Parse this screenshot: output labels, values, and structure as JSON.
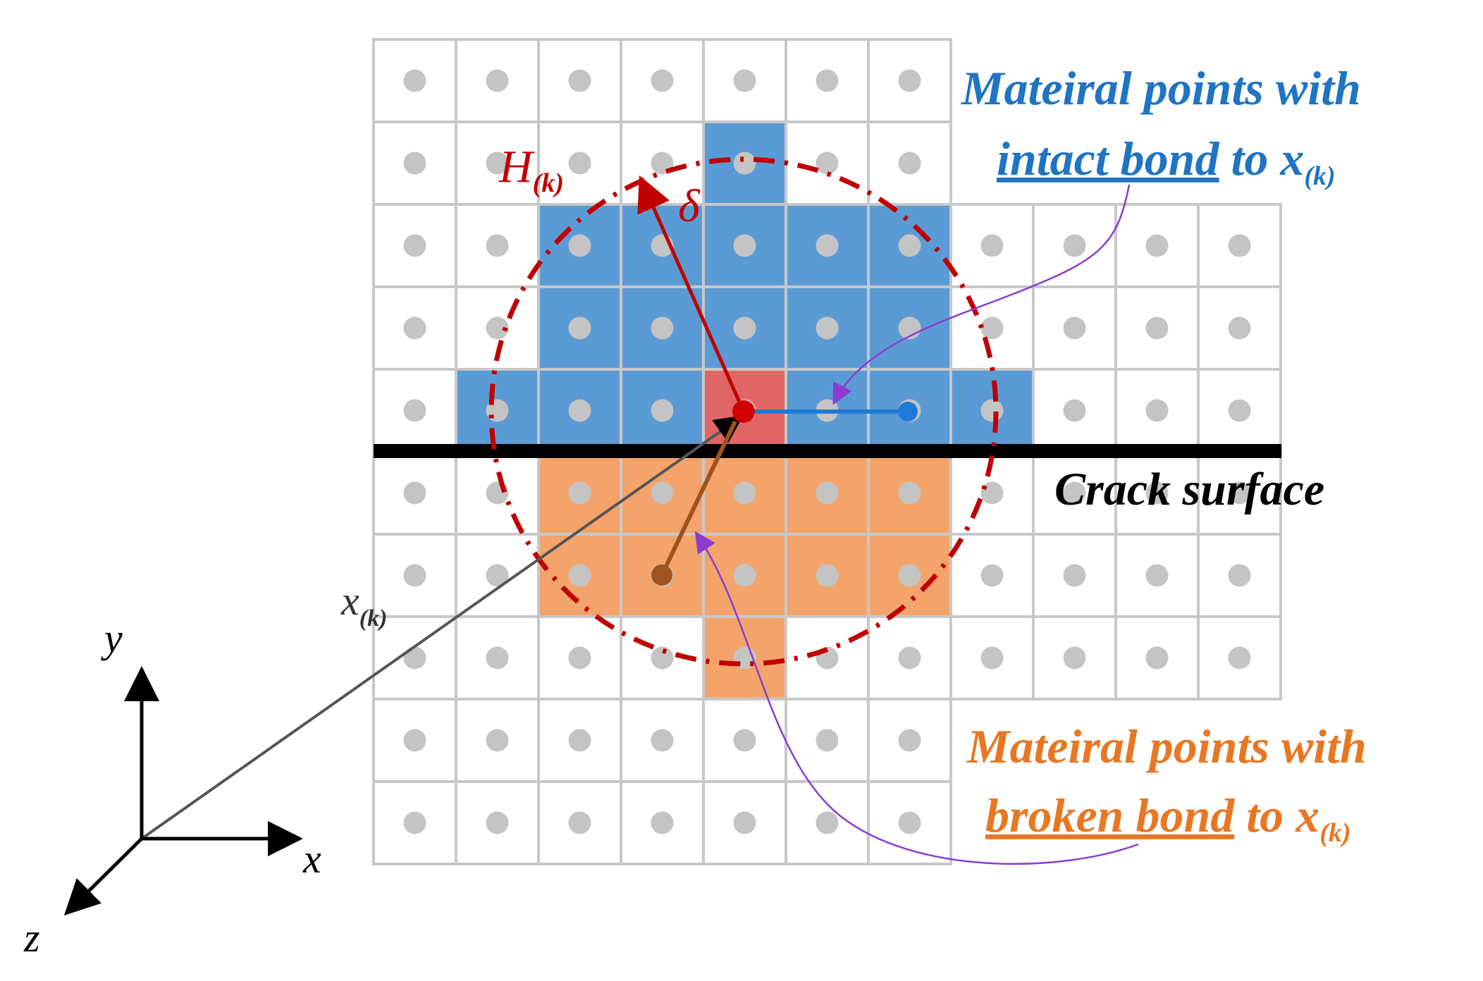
{
  "labels": {
    "horizon": "H",
    "horizon_sub": "(k)",
    "delta": "δ",
    "position": "x",
    "position_sub": "(k)",
    "crack": "Crack surface",
    "axis_x": "x",
    "axis_y": "y",
    "axis_z": "z"
  },
  "intact_note": {
    "line1": "Mateiral points with",
    "underlined": "intact bond",
    "line2_rest": " to ",
    "var": "x",
    "var_sub": "(k)"
  },
  "broken_note": {
    "line1": "Mateiral points with",
    "underlined": "broken bond",
    "line2_rest": " to ",
    "var": "x",
    "var_sub": "(k)"
  },
  "colors": {
    "grid_line": "#c8c8c8",
    "point": "#c4c4c4",
    "intact_fill": "#5b9bd5",
    "broken_fill": "#f4a46a",
    "center_fill": "#e06666",
    "horizon": "#c00000",
    "intact_text": "#1f74c3",
    "broken_text": "#e87722",
    "leader": "#8a3ccf",
    "broken_bond": "#a0521d",
    "intact_bond": "#1e7ad6",
    "crack": "#000000"
  }
}
